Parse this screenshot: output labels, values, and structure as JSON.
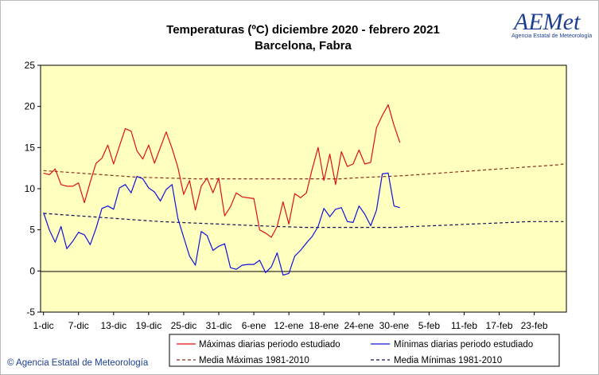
{
  "brand": {
    "logo_text": "AEMet",
    "logo_subtitle": "Agencia Estatal de Meteorología",
    "copyright": "© Agencia Estatal de Meteorología",
    "color": "#1c3f94"
  },
  "chart_data": {
    "type": "line",
    "title": "Temperaturas (ºC) diciembre 2020 - febrero 2021",
    "subtitle": "Barcelona, Fabra",
    "xlabel": "",
    "ylabel": "",
    "ylim": [
      -5,
      25
    ],
    "yticks": [
      -5,
      0,
      5,
      10,
      15,
      20,
      25
    ],
    "x_days": 90,
    "x_start": "2020-12-01",
    "x_end": "2021-02-28",
    "xtick_labels": [
      "1-dic",
      "7-dic",
      "13-dic",
      "19-dic",
      "25-dic",
      "31-dic",
      "6-ene",
      "12-ene",
      "18-ene",
      "24-ene",
      "30-ene",
      "5-feb",
      "11-feb",
      "17-feb",
      "23-feb"
    ],
    "xtick_days": [
      1,
      7,
      13,
      19,
      25,
      31,
      37,
      43,
      49,
      55,
      61,
      67,
      73,
      79,
      85
    ],
    "grid": false,
    "plot_background": "#ffffc0",
    "legend_position": "bottom",
    "series": [
      {
        "name": "Máximas diarias periodo estudiado",
        "color": "#dd1111",
        "style": "solid",
        "values": [
          11.9,
          11.7,
          12.4,
          10.5,
          10.3,
          10.3,
          10.7,
          8.3,
          10.8,
          13.1,
          13.7,
          15.3,
          13.0,
          15.2,
          17.3,
          17.0,
          14.6,
          13.6,
          15.3,
          13.1,
          15.0,
          16.9,
          14.9,
          12.6,
          9.3,
          11.0,
          7.4,
          10.3,
          11.3,
          9.5,
          11.3,
          6.7,
          7.8,
          9.5,
          9.0,
          8.9,
          8.8,
          5.0,
          4.6,
          4.1,
          5.4,
          8.4,
          5.7,
          9.4,
          8.9,
          9.5,
          12.4,
          15.0,
          11.0,
          14.2,
          10.5,
          14.5,
          12.7,
          13.0,
          14.7,
          13.0,
          13.2,
          17.4,
          18.9,
          20.2,
          17.7,
          15.6
        ]
      },
      {
        "name": "Mínimas diarias periodo estudiado",
        "color": "#1111dd",
        "style": "solid",
        "values": [
          7.1,
          5.0,
          3.5,
          5.4,
          2.7,
          3.6,
          4.7,
          4.4,
          3.2,
          5.2,
          7.6,
          7.9,
          7.5,
          10.1,
          10.5,
          9.5,
          11.5,
          11.2,
          10.1,
          9.6,
          8.5,
          9.9,
          10.5,
          6.4,
          4.1,
          1.8,
          0.7,
          4.8,
          4.3,
          2.5,
          3.0,
          3.3,
          0.4,
          0.2,
          0.7,
          0.8,
          0.8,
          1.3,
          -0.2,
          0.5,
          2.2,
          -0.5,
          -0.3,
          1.8,
          2.5,
          3.4,
          4.2,
          5.4,
          7.6,
          6.6,
          7.5,
          7.7,
          6.0,
          5.9,
          7.9,
          6.9,
          5.5,
          7.4,
          11.8,
          11.9,
          7.9,
          7.7
        ]
      },
      {
        "name": "Media Máximas 1981-2010",
        "color": "#8b2f1e",
        "style": "dashed",
        "values": [
          12.2,
          12.15,
          12.1,
          12.05,
          12.0,
          11.95,
          11.9,
          11.85,
          11.8,
          11.75,
          11.7,
          11.65,
          11.6,
          11.55,
          11.5,
          11.45,
          11.4,
          11.38,
          11.36,
          11.34,
          11.32,
          11.3,
          11.28,
          11.26,
          11.24,
          11.22,
          11.2,
          11.2,
          11.2,
          11.2,
          11.2,
          11.2,
          11.2,
          11.2,
          11.2,
          11.2,
          11.2,
          11.2,
          11.2,
          11.2,
          11.2,
          11.2,
          11.2,
          11.2,
          11.2,
          11.2,
          11.2,
          11.2,
          11.2,
          11.2,
          11.2,
          11.2,
          11.25,
          11.3,
          11.33,
          11.37,
          11.4,
          11.43,
          11.47,
          11.5,
          11.53,
          11.57,
          11.6,
          11.65,
          11.7,
          11.75,
          11.8,
          11.85,
          11.9,
          11.95,
          12.0,
          12.05,
          12.1,
          12.15,
          12.2,
          12.25,
          12.3,
          12.35,
          12.4,
          12.45,
          12.5,
          12.55,
          12.6,
          12.65,
          12.7,
          12.75,
          12.8,
          12.85,
          12.9,
          13.0
        ]
      },
      {
        "name": "Media Mínimas 1981-2010",
        "color": "#111155",
        "style": "dashed",
        "values": [
          7.0,
          6.95,
          6.9,
          6.85,
          6.8,
          6.75,
          6.7,
          6.65,
          6.6,
          6.55,
          6.5,
          6.45,
          6.4,
          6.35,
          6.3,
          6.25,
          6.2,
          6.15,
          6.1,
          6.05,
          6.0,
          5.97,
          5.94,
          5.91,
          5.88,
          5.85,
          5.82,
          5.79,
          5.76,
          5.73,
          5.7,
          5.67,
          5.64,
          5.61,
          5.58,
          5.55,
          5.52,
          5.49,
          5.46,
          5.43,
          5.4,
          5.38,
          5.36,
          5.34,
          5.32,
          5.3,
          5.3,
          5.3,
          5.3,
          5.3,
          5.3,
          5.3,
          5.3,
          5.3,
          5.3,
          5.3,
          5.3,
          5.3,
          5.3,
          5.3,
          5.3,
          5.33,
          5.36,
          5.39,
          5.42,
          5.45,
          5.48,
          5.51,
          5.54,
          5.57,
          5.6,
          5.63,
          5.66,
          5.69,
          5.72,
          5.75,
          5.78,
          5.81,
          5.84,
          5.87,
          5.9,
          5.93,
          5.96,
          5.99,
          6.0,
          6.0,
          6.0,
          6.0,
          6.0,
          6.0
        ]
      }
    ]
  }
}
